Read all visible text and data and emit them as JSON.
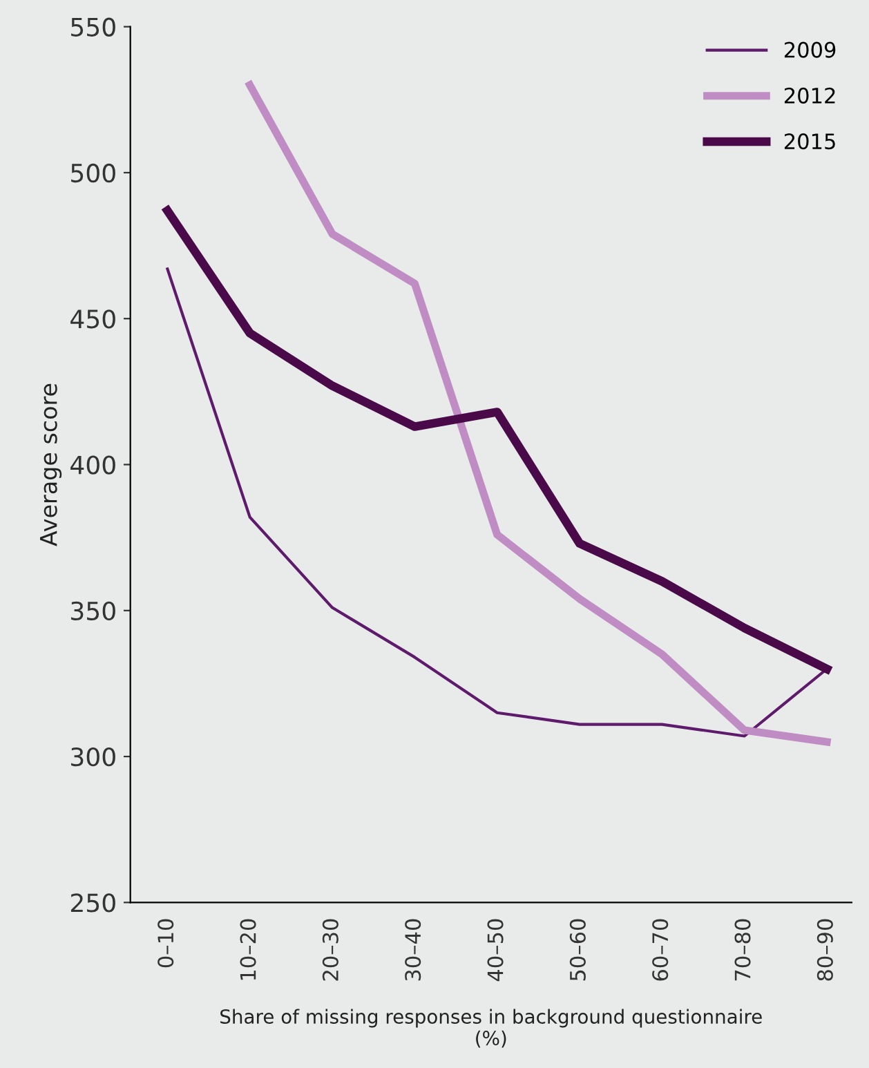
{
  "chart_data": {
    "type": "line",
    "xlabel": "Share of missing responses in background questionnaire\n(%)",
    "ylabel": "Average score",
    "categories": [
      "0–10",
      "10–20",
      "20–30",
      "30–40",
      "40–50",
      "50–60",
      "60–70",
      "70–80",
      "80–90"
    ],
    "series": [
      {
        "name": "2009",
        "color": "#5e1a6b",
        "values": [
          467,
          382,
          351,
          334,
          315,
          311,
          311,
          307,
          330
        ]
      },
      {
        "name": "2012",
        "color": "#c08cc4",
        "values": [
          null,
          530,
          479,
          462,
          376,
          354,
          335,
          309,
          305
        ]
      },
      {
        "name": "2015",
        "color": "#4a0a4a",
        "values": [
          487,
          445,
          427,
          413,
          418,
          373,
          360,
          344,
          330
        ]
      }
    ],
    "ylim": [
      250,
      550
    ],
    "yticks": [
      250,
      300,
      350,
      400,
      450,
      500,
      550
    ],
    "grid": false,
    "legend": "top right",
    "marker": "none"
  }
}
